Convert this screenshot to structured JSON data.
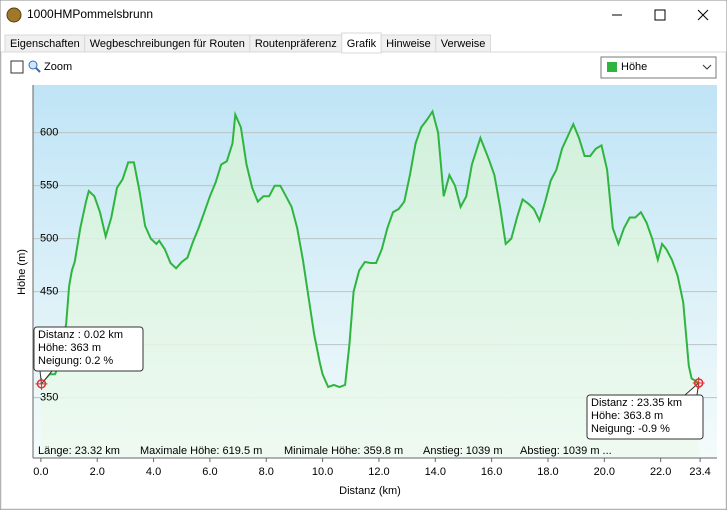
{
  "window": {
    "title": "1000HMPommelsbrunn"
  },
  "tabs": [
    "Eigenschaften",
    "Wegbeschreibungen für Routen",
    "Routenpräferenz",
    "Grafik",
    "Hinweise",
    "Verweise"
  ],
  "active_tab": "Grafik",
  "toolbar": {
    "zoom_label": "Zoom"
  },
  "summary": [
    "Länge: 23.32 km",
    "Maximale Höhe: 619.5 m",
    "Minimale Höhe: 359.8 m",
    "Anstieg: 1039 m",
    "Abstieg: 1039 m ..."
  ],
  "chart_data": {
    "type": "area",
    "xlabel": "Distanz  (km)",
    "ylabel": "Höhe (m)",
    "xlim": [
      -0.28,
      24.0
    ],
    "ylim": [
      293,
      645
    ],
    "xticks": [
      {
        "value": 0,
        "label": "0.0"
      },
      {
        "value": 2,
        "label": "2.0"
      },
      {
        "value": 4,
        "label": "4.0"
      },
      {
        "value": 6,
        "label": "6.0"
      },
      {
        "value": 8,
        "label": "8.0"
      },
      {
        "value": 10,
        "label": "10.0"
      },
      {
        "value": 12,
        "label": "12.0"
      },
      {
        "value": 14,
        "label": "14.0"
      },
      {
        "value": 16,
        "label": "16.0"
      },
      {
        "value": 18,
        "label": "18.0"
      },
      {
        "value": 20,
        "label": "20.0"
      },
      {
        "value": 22,
        "label": "22.0"
      },
      {
        "value": 23.4,
        "label": "23.4"
      }
    ],
    "yticks": [
      350,
      400,
      450,
      500,
      550,
      600
    ],
    "grid": true,
    "x": [
      0.0,
      0.3,
      0.5,
      0.7,
      0.9,
      1.0,
      1.1,
      1.2,
      1.4,
      1.6,
      1.7,
      1.9,
      2.1,
      2.3,
      2.5,
      2.7,
      2.9,
      3.1,
      3.3,
      3.5,
      3.7,
      3.9,
      4.1,
      4.2,
      4.4,
      4.6,
      4.8,
      5.0,
      5.2,
      5.4,
      5.6,
      5.8,
      6.0,
      6.2,
      6.4,
      6.6,
      6.8,
      6.9,
      7.1,
      7.3,
      7.5,
      7.7,
      7.9,
      8.1,
      8.3,
      8.5,
      8.7,
      8.9,
      9.1,
      9.3,
      9.5,
      9.7,
      9.9,
      10.0,
      10.2,
      10.4,
      10.6,
      10.8,
      10.95,
      11.1,
      11.3,
      11.5,
      11.7,
      11.9,
      12.1,
      12.3,
      12.5,
      12.7,
      12.9,
      13.1,
      13.3,
      13.5,
      13.7,
      13.9,
      14.1,
      14.3,
      14.5,
      14.7,
      14.9,
      15.1,
      15.3,
      15.6,
      15.9,
      16.1,
      16.3,
      16.5,
      16.7,
      16.9,
      17.1,
      17.3,
      17.5,
      17.7,
      17.9,
      18.1,
      18.3,
      18.5,
      18.9,
      19.1,
      19.3,
      19.5,
      19.7,
      19.9,
      20.1,
      20.3,
      20.5,
      20.7,
      20.9,
      21.1,
      21.3,
      21.5,
      21.7,
      21.9,
      22.05,
      22.2,
      22.4,
      22.6,
      22.8,
      23.0,
      23.1,
      23.35
    ],
    "series": [
      {
        "name": "Höhe",
        "color": "#2fb53f",
        "values": [
          363,
          372,
          372,
          385,
          420,
          455,
          470,
          478,
          510,
          535,
          545,
          540,
          525,
          502,
          520,
          548,
          556,
          572,
          572,
          545,
          512,
          500,
          495,
          498,
          490,
          477,
          472,
          478,
          482,
          497,
          510,
          525,
          540,
          553,
          570,
          573,
          590,
          617,
          605,
          570,
          548,
          535,
          540,
          540,
          550,
          550,
          540,
          530,
          510,
          480,
          445,
          410,
          383,
          372,
          360,
          362,
          360,
          362,
          400,
          450,
          470,
          478,
          477,
          477,
          490,
          510,
          525,
          528,
          535,
          560,
          590,
          605,
          612,
          620,
          600,
          540,
          560,
          550,
          530,
          540,
          570,
          595,
          575,
          560,
          530,
          495,
          500,
          520,
          537,
          533,
          528,
          517,
          535,
          555,
          565,
          585,
          608,
          595,
          578,
          578,
          585,
          588,
          565,
          510,
          495,
          510,
          520,
          520,
          525,
          515,
          500,
          480,
          495,
          490,
          480,
          465,
          440,
          380,
          368,
          364
        ]
      }
    ],
    "annotations": [
      {
        "x": 0.02,
        "y": 363,
        "lines": [
          "Distanz  : 0.02 km",
          "Höhe: 363 m",
          "Neigung: 0.2 %"
        ]
      },
      {
        "x": 23.35,
        "y": 363.8,
        "lines": [
          "Distanz  : 23.35 km",
          "Höhe: 363.8 m",
          "Neigung: -0.9 %"
        ]
      }
    ]
  }
}
